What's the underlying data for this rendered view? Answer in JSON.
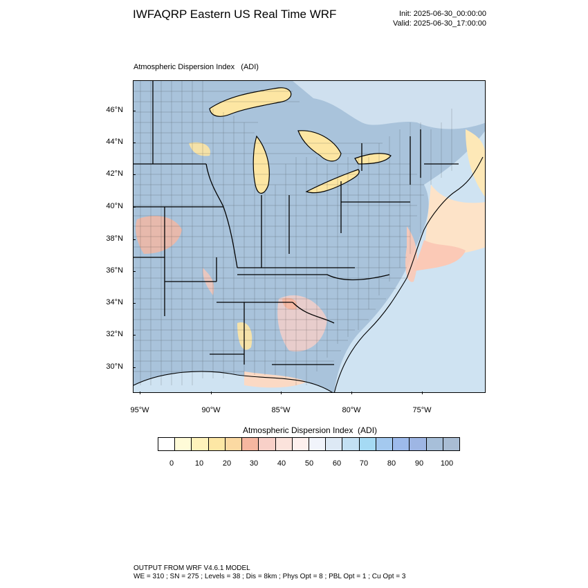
{
  "header": {
    "title": "IWFAQRP Eastern US Real Time WRF",
    "init": "Init: 2025-06-30_00:00:00",
    "valid": "Valid: 2025-06-30_17:00:00"
  },
  "map": {
    "subtitle": "Atmospheric Dispersion Index   (ADI)",
    "lat_labels": [
      "46°N",
      "44°N",
      "42°N",
      "40°N",
      "38°N",
      "36°N",
      "34°N",
      "32°N",
      "30°N"
    ],
    "lon_labels": [
      "95°W",
      "90°W",
      "85°W",
      "80°W",
      "75°W"
    ],
    "colors": {
      "land_default": "#a9c3db",
      "water": "#a8c8e6",
      "border": "#000000"
    }
  },
  "colorbar": {
    "title": "Atmospheric Dispersion Index  (ADI)",
    "labels": [
      "0",
      "10",
      "20",
      "30",
      "40",
      "50",
      "60",
      "70",
      "80",
      "90",
      "100"
    ],
    "colors": [
      "#ffffff",
      "#fffbd8",
      "#fff3bb",
      "#fde7a5",
      "#fbd9a2",
      "#f6b7a0",
      "#f8d0c8",
      "#fbe3dc",
      "#fdf0ee",
      "#f1f4fb",
      "#dde9f5",
      "#c3e0f3",
      "#a5daf4",
      "#a4c9ef",
      "#9dbaeb",
      "#9eb6e4",
      "#a7bfd9",
      "#a9bdd4"
    ]
  },
  "footer": {
    "line1": "OUTPUT FROM WRF V4.6.1 MODEL",
    "line2": "WE = 310 ; SN = 275 ; Levels = 38 ; Dis = 8km ; Phys Opt = 8 ; PBL Opt = 1 ; Cu Opt = 3"
  }
}
